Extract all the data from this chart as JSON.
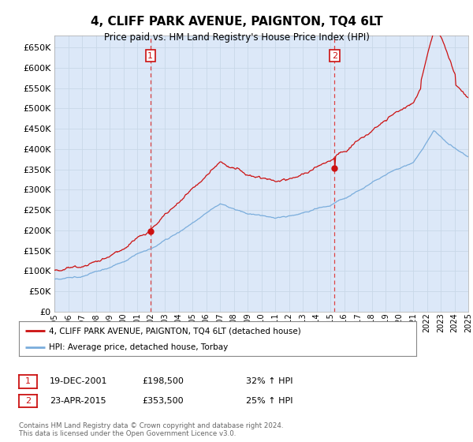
{
  "title": "4, CLIFF PARK AVENUE, PAIGNTON, TQ4 6LT",
  "subtitle": "Price paid vs. HM Land Registry's House Price Index (HPI)",
  "plot_bg_color": "#dce8f8",
  "outer_bg_color": "#ffffff",
  "red_line_label": "4, CLIFF PARK AVENUE, PAIGNTON, TQ4 6LT (detached house)",
  "blue_line_label": "HPI: Average price, detached house, Torbay",
  "transaction1_date": "19-DEC-2001",
  "transaction1_price": "£198,500",
  "transaction1_hpi": "32% ↑ HPI",
  "transaction2_date": "23-APR-2015",
  "transaction2_price": "£353,500",
  "transaction2_hpi": "25% ↑ HPI",
  "footer": "Contains HM Land Registry data © Crown copyright and database right 2024.\nThis data is licensed under the Open Government Licence v3.0.",
  "ylim_min": 0,
  "ylim_max": 680000,
  "yticks": [
    0,
    50000,
    100000,
    150000,
    200000,
    250000,
    300000,
    350000,
    400000,
    450000,
    500000,
    550000,
    600000,
    650000
  ],
  "year_start": 1995,
  "year_end": 2025,
  "transaction1_year": 2001.96,
  "transaction2_year": 2015.31,
  "t1_price": 198500,
  "t2_price": 353500
}
